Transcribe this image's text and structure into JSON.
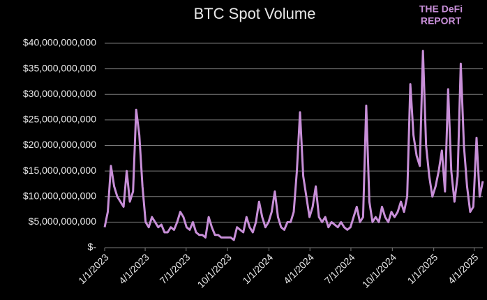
{
  "chart_data": {
    "type": "line",
    "title": "BTC Spot Volume",
    "logo": [
      "THE DeFi",
      "REPORT"
    ],
    "x": [
      "1/1/2023",
      "1/8/2023",
      "1/15/2023",
      "1/22/2023",
      "1/29/2023",
      "2/5/2023",
      "2/12/2023",
      "2/19/2023",
      "2/26/2023",
      "3/5/2023",
      "3/12/2023",
      "3/19/2023",
      "3/26/2023",
      "4/2/2023",
      "4/9/2023",
      "4/16/2023",
      "4/23/2023",
      "4/30/2023",
      "5/7/2023",
      "5/14/2023",
      "5/21/2023",
      "5/28/2023",
      "6/4/2023",
      "6/11/2023",
      "6/18/2023",
      "6/25/2023",
      "7/2/2023",
      "7/9/2023",
      "7/16/2023",
      "7/23/2023",
      "7/30/2023",
      "8/6/2023",
      "8/13/2023",
      "8/20/2023",
      "8/27/2023",
      "9/3/2023",
      "9/10/2023",
      "9/17/2023",
      "9/24/2023",
      "10/1/2023",
      "10/8/2023",
      "10/15/2023",
      "10/22/2023",
      "10/29/2023",
      "11/5/2023",
      "11/12/2023",
      "11/19/2023",
      "11/26/2023",
      "12/3/2023",
      "12/10/2023",
      "12/17/2023",
      "12/24/2023",
      "12/31/2023",
      "1/7/2024",
      "1/14/2024",
      "1/21/2024",
      "1/28/2024",
      "2/4/2024",
      "2/11/2024",
      "2/18/2024",
      "2/25/2024",
      "3/3/2024",
      "3/10/2024",
      "3/17/2024",
      "3/24/2024",
      "3/31/2024",
      "4/7/2024",
      "4/14/2024",
      "4/21/2024",
      "4/28/2024",
      "5/5/2024",
      "5/12/2024",
      "5/19/2024",
      "5/26/2024",
      "6/2/2024",
      "6/9/2024",
      "6/16/2024",
      "6/23/2024",
      "6/30/2024",
      "7/7/2024",
      "7/14/2024",
      "7/21/2024",
      "7/28/2024",
      "8/4/2024",
      "8/11/2024",
      "8/18/2024",
      "8/25/2024",
      "9/1/2024",
      "9/8/2024",
      "9/15/2024",
      "9/22/2024",
      "9/29/2024",
      "10/6/2024",
      "10/13/2024",
      "10/20/2024",
      "10/27/2024",
      "11/3/2024",
      "11/10/2024",
      "11/17/2024",
      "11/24/2024",
      "12/1/2024",
      "12/8/2024",
      "12/15/2024",
      "12/22/2024",
      "12/29/2024",
      "1/5/2025",
      "1/12/2025",
      "1/19/2025",
      "1/26/2025",
      "2/2/2025",
      "2/9/2025",
      "2/16/2025",
      "2/23/2025",
      "3/2/2025",
      "3/9/2025",
      "3/16/2025",
      "3/23/2025",
      "3/30/2025",
      "4/6/2025",
      "4/13/2025",
      "4/20/2025"
    ],
    "series": [
      {
        "name": "BTC Spot Volume",
        "color": "#c88fd8",
        "values": [
          4000000000.0,
          7000000000.0,
          16000000000.0,
          12000000000.0,
          10000000000.0,
          9000000000.0,
          8000000000.0,
          15000000000.0,
          9000000000.0,
          11000000000.0,
          27000000000.0,
          22000000000.0,
          12000000000.0,
          5000000000.0,
          4000000000.0,
          6000000000.0,
          5000000000.0,
          4000000000.0,
          4500000000.0,
          3000000000.0,
          3000000000.0,
          4000000000.0,
          3500000000.0,
          5000000000.0,
          7000000000.0,
          6000000000.0,
          4000000000.0,
          3500000000.0,
          5000000000.0,
          3000000000.0,
          2500000000.0,
          2500000000.0,
          2000000000.0,
          6000000000.0,
          4000000000.0,
          2500000000.0,
          2500000000.0,
          2000000000.0,
          2000000000.0,
          2000000000.0,
          2000000000.0,
          1500000000.0,
          4000000000.0,
          3500000000.0,
          3000000000.0,
          6000000000.0,
          4000000000.0,
          3000000000.0,
          5000000000.0,
          9000000000.0,
          6000000000.0,
          4000000000.0,
          5000000000.0,
          7000000000.0,
          11000000000.0,
          6000000000.0,
          4000000000.0,
          3500000000.0,
          5000000000.0,
          5000000000.0,
          7000000000.0,
          15000000000.0,
          26500000000.0,
          14000000000.0,
          10000000000.0,
          6000000000.0,
          8000000000.0,
          12000000000.0,
          6000000000.0,
          5000000000.0,
          6000000000.0,
          4000000000.0,
          5000000000.0,
          4500000000.0,
          4000000000.0,
          5000000000.0,
          4000000000.0,
          3500000000.0,
          4000000000.0,
          6000000000.0,
          8000000000.0,
          5000000000.0,
          6000000000.0,
          27800000000.0,
          9000000000.0,
          5000000000.0,
          6000000000.0,
          5000000000.0,
          8000000000.0,
          6000000000.0,
          5000000000.0,
          7000000000.0,
          6000000000.0,
          7000000000.0,
          9000000000.0,
          7000000000.0,
          10000000000.0,
          32000000000.0,
          22000000000.0,
          18000000000.0,
          16000000000.0,
          38500000000.0,
          20000000000.0,
          14000000000.0,
          10000000000.0,
          12000000000.0,
          15000000000.0,
          19000000000.0,
          11000000000.0,
          31000000000.0,
          15000000000.0,
          9000000000.0,
          14000000000.0,
          36000000000.0,
          20000000000.0,
          12000000000.0,
          7000000000.0,
          8000000000.0,
          21500000000.0,
          10000000000.0,
          13000000000.0
        ]
      }
    ],
    "xlim": [
      "1/1/2023",
      "4/20/2025"
    ],
    "xticks": [
      "1/1/2023",
      "4/1/2023",
      "7/1/2023",
      "10/1/2023",
      "1/1/2024",
      "4/1/2024",
      "7/1/2024",
      "10/1/2024",
      "1/1/2025",
      "4/1/2025"
    ],
    "ylim": [
      0,
      40000000000
    ],
    "yticks": [
      {
        "value": 0,
        "label": "$-"
      },
      {
        "value": 5000000000,
        "label": "$5,000,000,000"
      },
      {
        "value": 10000000000,
        "label": "$10,000,000,000"
      },
      {
        "value": 15000000000,
        "label": "$15,000,000,000"
      },
      {
        "value": 20000000000,
        "label": "$20,000,000,000"
      },
      {
        "value": 25000000000,
        "label": "$25,000,000,000"
      },
      {
        "value": 30000000000,
        "label": "$30,000,000,000"
      },
      {
        "value": 35000000000,
        "label": "$35,000,000,000"
      },
      {
        "value": 40000000000,
        "label": "$40,000,000,000"
      }
    ],
    "grid": true
  }
}
